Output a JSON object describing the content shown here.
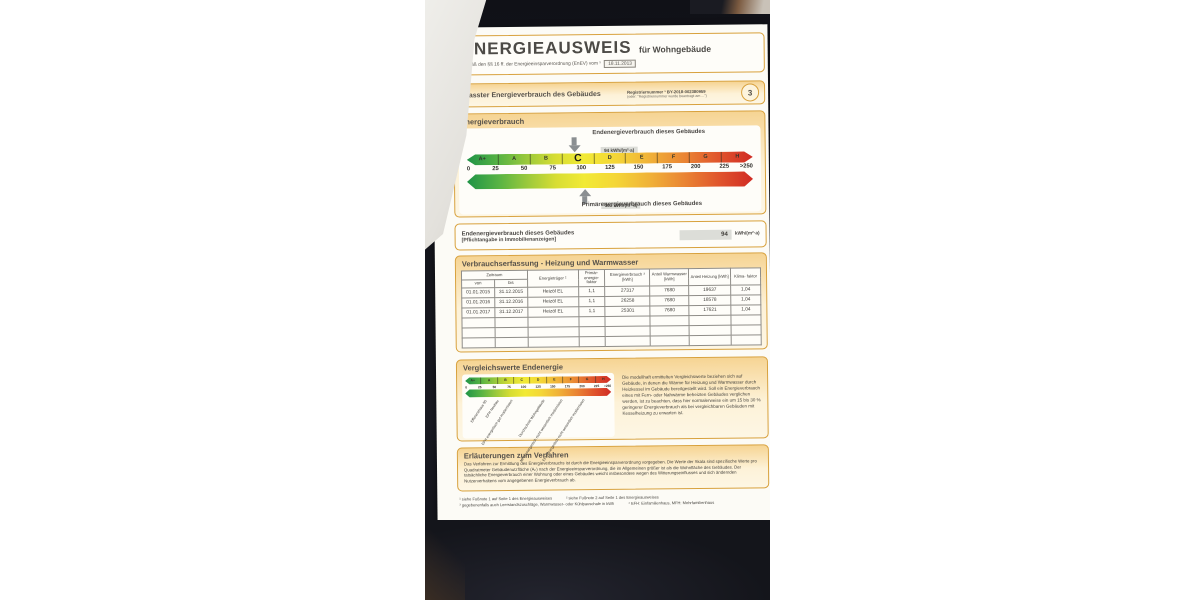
{
  "doc": {
    "title": "ENERGIEAUSWEIS",
    "title_suffix": "für Wohngebäude",
    "subtitle_prefix": "gemäß den §§ 16 ff. der Energieeinsparverordnung (EnEV) vom ¹",
    "subtitle_date": "18.11.2013",
    "section1": {
      "heading": "Erfasster Energieverbrauch des Gebäudes",
      "reg_label": "Registriernummer ¹",
      "reg_value": "BY-2018-002380959",
      "reg_note": "(oder: \"Registriernummer wurde beantragt am ...\")",
      "page_number": "3"
    },
    "scale_section": {
      "heading": "Energieverbrauch",
      "top_label": "Endenergieverbrauch dieses Gebäudes",
      "top_value": "94 kWh/(m²·a)",
      "top_value_num": 94,
      "letters": [
        "A+",
        "A",
        "B",
        "C",
        "D",
        "E",
        "F",
        "G",
        "H"
      ],
      "highlight_letter": "C",
      "ticks": [
        "0",
        "25",
        "50",
        "75",
        "100",
        "125",
        "150",
        "175",
        "200",
        "225",
        ">250"
      ],
      "scale_max": 250,
      "bottom_value": "103 kWh/(m²·a)",
      "bottom_value_num": 103,
      "bottom_label": "Primärenergieverbrauch dieses Gebäudes"
    },
    "endenergie_row": {
      "label_line1": "Endenergieverbrauch dieses Gebäudes",
      "label_line2": "[Pflichtangabe in Immobilienanzeigen]",
      "value": "94",
      "unit": "kWh/(m²·a)"
    },
    "table_section": {
      "heading": "Verbrauchserfassung - Heizung und Warmwasser",
      "headers": {
        "zeitraum": "Zeitraum",
        "von": "von",
        "bis": "bis",
        "energietraeger": "Energieträger ²",
        "faktor": "Primär- energie- faktor",
        "verbrauch": "Energieverbrauch ³ [kWh]",
        "warmwasser": "Anteil Warmwasser [kWh]",
        "heizung": "Anteil Heizung [kWh]",
        "klima": "Klima- faktor"
      },
      "rows": [
        [
          "01.01.2015",
          "31.12.2015",
          "Heizöl EL",
          "1,1",
          "27317",
          "7680",
          "19637",
          "1,04"
        ],
        [
          "01.01.2016",
          "31.12.2016",
          "Heizöl EL",
          "1,1",
          "26258",
          "7680",
          "18578",
          "1,04"
        ],
        [
          "01.01.2017",
          "31.12.2017",
          "Heizöl EL",
          "1,1",
          "25301",
          "7680",
          "17621",
          "1,04"
        ]
      ],
      "empty_rows": 3
    },
    "compare_section": {
      "heading": "Vergleichswerte Endenergie",
      "letters": [
        "A+",
        "A",
        "B",
        "C",
        "D",
        "E",
        "F",
        "G",
        "H"
      ],
      "ticks": [
        "0",
        "25",
        "50",
        "75",
        "100",
        "125",
        "150",
        "175",
        "200",
        "225",
        ">250"
      ],
      "markers": [
        {
          "label": "Effizienzhaus 55",
          "pos": 13
        },
        {
          "label": "EFH Neubau",
          "pos": 21
        },
        {
          "label": "EFH energetisch gut modernisiert",
          "pos": 31
        },
        {
          "label": "Durchschnitt Wohngebäude",
          "pos": 53
        },
        {
          "label": "MFH energetisch nicht wesentlich modernisiert",
          "pos": 65
        },
        {
          "label": "EFH energetisch nicht wesentlich modernisiert",
          "pos": 80
        }
      ],
      "text": "Die modellhaft ermittelten Vergleichswerte beziehen sich auf Gebäude, in denen die Wärme für Heizung und Warmwasser durch Heizkessel im Gebäude bereitgestellt wird. Soll ein Energieverbrauch eines mit Fern- oder Nahwärme beheizten Gebäudes verglichen werden, ist zu beachten, dass hier normalerweise ein um 15 bis 30 % geringerer Energieverbrauch als bei vergleichbaren Gebäuden mit Kesselheizung zu erwarten ist."
    },
    "explain_section": {
      "heading": "Erläuterungen zum Verfahren",
      "text": "Das Verfahren zur Ermittlung des Energieverbrauchs ist durch die Energieeinsparverordnung vorgegeben. Die Werte der Skala sind spezifische Werte pro Quadratmeter Gebäudenutzfläche (Aₙ) nach der Energieeinsparverordnung, die im Allgemeinen größer ist als die Wohnfläche des Gebäudes. Der tatsächliche Energieverbrauch einer Wohnung oder eines Gebäudes weicht insbesondere wegen des Witterungseinflusses und sich ändernden Nutzerverhaltens vom angegebenen Energieverbrauch ab.",
      "footnotes": [
        "¹ siehe Fußnote 1 auf Seite 1 des Energieausweises",
        "² siehe Fußnote 2 auf Seite 1 des Energieausweises",
        "³ gegebenenfalls auch Leerstandszuschläge, Warmwasser- oder Kühlpauschale in kWh",
        "⁴ EFH: Einfamilienhaus, MFH: Mehrfamilienhaus"
      ]
    }
  }
}
